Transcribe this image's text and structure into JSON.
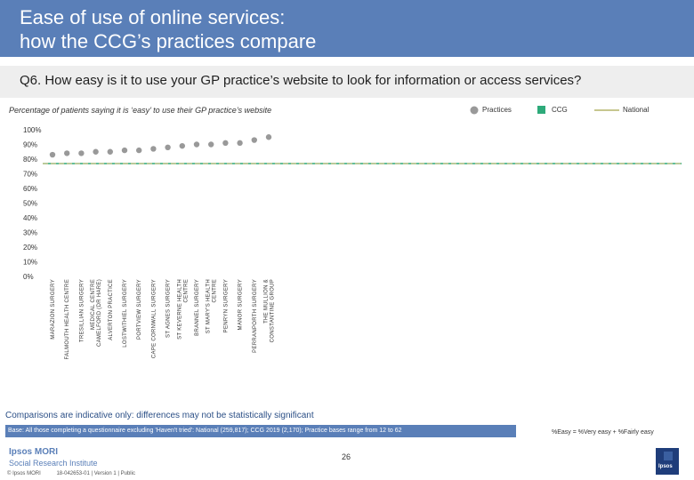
{
  "title": {
    "line1": "Ease of use of online services:",
    "line2": "how the CCG’s practices compare"
  },
  "question": "Q6. How easy is it to use your GP practice’s website to look for information or access services?",
  "subtitle": "Percentage of patients saying it is ‘easy’ to use their GP practice’s website",
  "legend": {
    "practices": "Practices",
    "ccg": "CCG",
    "national": "National"
  },
  "colors": {
    "header": "#5a7fb8",
    "point": "#999999",
    "ccg": "#2eaa7a",
    "national": "#c7c78f",
    "note": "#2b4f86"
  },
  "chart_data": {
    "type": "scatter",
    "title": "",
    "xlabel": "",
    "ylabel": "",
    "ylim": [
      0,
      100
    ],
    "y_ticks": [
      "0%",
      "10%",
      "20%",
      "30%",
      "40%",
      "50%",
      "60%",
      "70%",
      "80%",
      "90%",
      "100%"
    ],
    "categories": [
      "MARAZION SURGERY",
      "FALMOUTH HEALTH CENTRE",
      "TRESILLIAN SURGERY",
      "MEDICAL CENTRE CAMELFORD (DR HARE)",
      "ALVERTON PRACTICE",
      "LOSTWITHIEL SURGERY",
      "PORTVIEW SURGERY",
      "CAPE CORNWALL SURGERY",
      "ST AGNES SURGERY",
      "ST KEVERNE HEALTH CENTRE",
      "BRANNEL SURGERY",
      "ST MARY'S HEALTH CENTRE",
      "PENRYN SURGERY",
      "MANOR SURGERY",
      "PERRANPORTH SURGERY",
      "THE MULLION & CONSTANTINE GROUP PRACTICE"
    ],
    "series": [
      {
        "values": [
          83,
          84,
          84,
          85,
          85,
          86,
          86,
          87,
          88,
          89,
          90,
          90,
          91,
          91,
          93,
          95
        ]
      }
    ],
    "reference_lines": {
      "ccg": 77,
      "national": 77
    }
  },
  "note": "Comparisons are indicative only: differences may not be statistically significant",
  "base": "Base: All those completing a questionnaire excluding 'Haven't tried': National (259,817); CCG 2019 (2,170); Practice bases range from 12 to 62",
  "easy_definition": "%Easy = %Very easy + %Fairly easy",
  "page_number": "26",
  "footer": {
    "brand_line1": "Ipsos MORI",
    "brand_line2": "Social Research Institute",
    "copyright": "© Ipsos MORI",
    "doc_ref": "18-042653-01 | Version 1 | Public"
  },
  "logo_text": "Ipsos"
}
